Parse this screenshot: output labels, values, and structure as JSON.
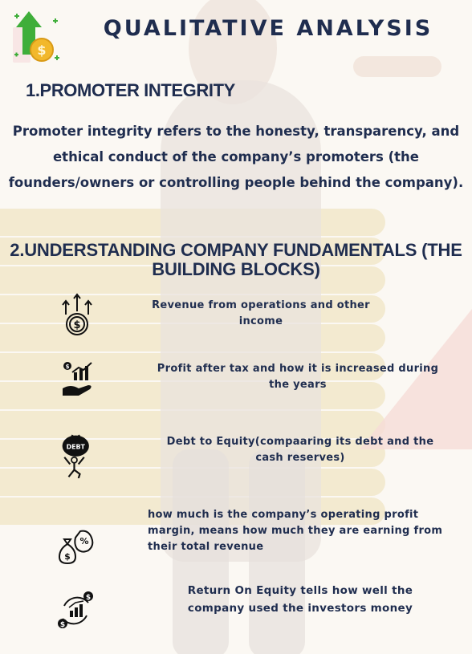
{
  "title": "QUALITATIVE ANALYSIS",
  "section1": {
    "heading": "1.PROMOTER INTEGRITY",
    "body": "Promoter integrity refers to the honesty, transparency, and ethical conduct of the company’s promoters (the founders/owners or controlling people behind the company)."
  },
  "section2": {
    "heading": "2.UNDERSTANDING COMPANY FUNDAMENTALS (THE BUILDING BLOCKS)",
    "items": [
      {
        "icon": "revenue-growth-icon",
        "text": "Revenue from operations and other income"
      },
      {
        "icon": "profit-hand-chart-icon",
        "text": "Profit after tax and how it is increased during the years"
      },
      {
        "icon": "debt-burden-icon",
        "icon_label": "DEBT",
        "text": "Debt to Equity(compaaring its debt and the cash reserves)"
      },
      {
        "icon": "money-bag-percent-icon",
        "text": "how much is the company’s operating profit margin, means how much they are earning from their total revenue"
      },
      {
        "icon": "return-cycle-chart-icon",
        "text": "Return On Equity tells how well the company used the investors money"
      }
    ]
  },
  "colors": {
    "text": "#1f2d4f",
    "accent_green": "#3fae3a",
    "accent_gold": "#f2b82b"
  }
}
